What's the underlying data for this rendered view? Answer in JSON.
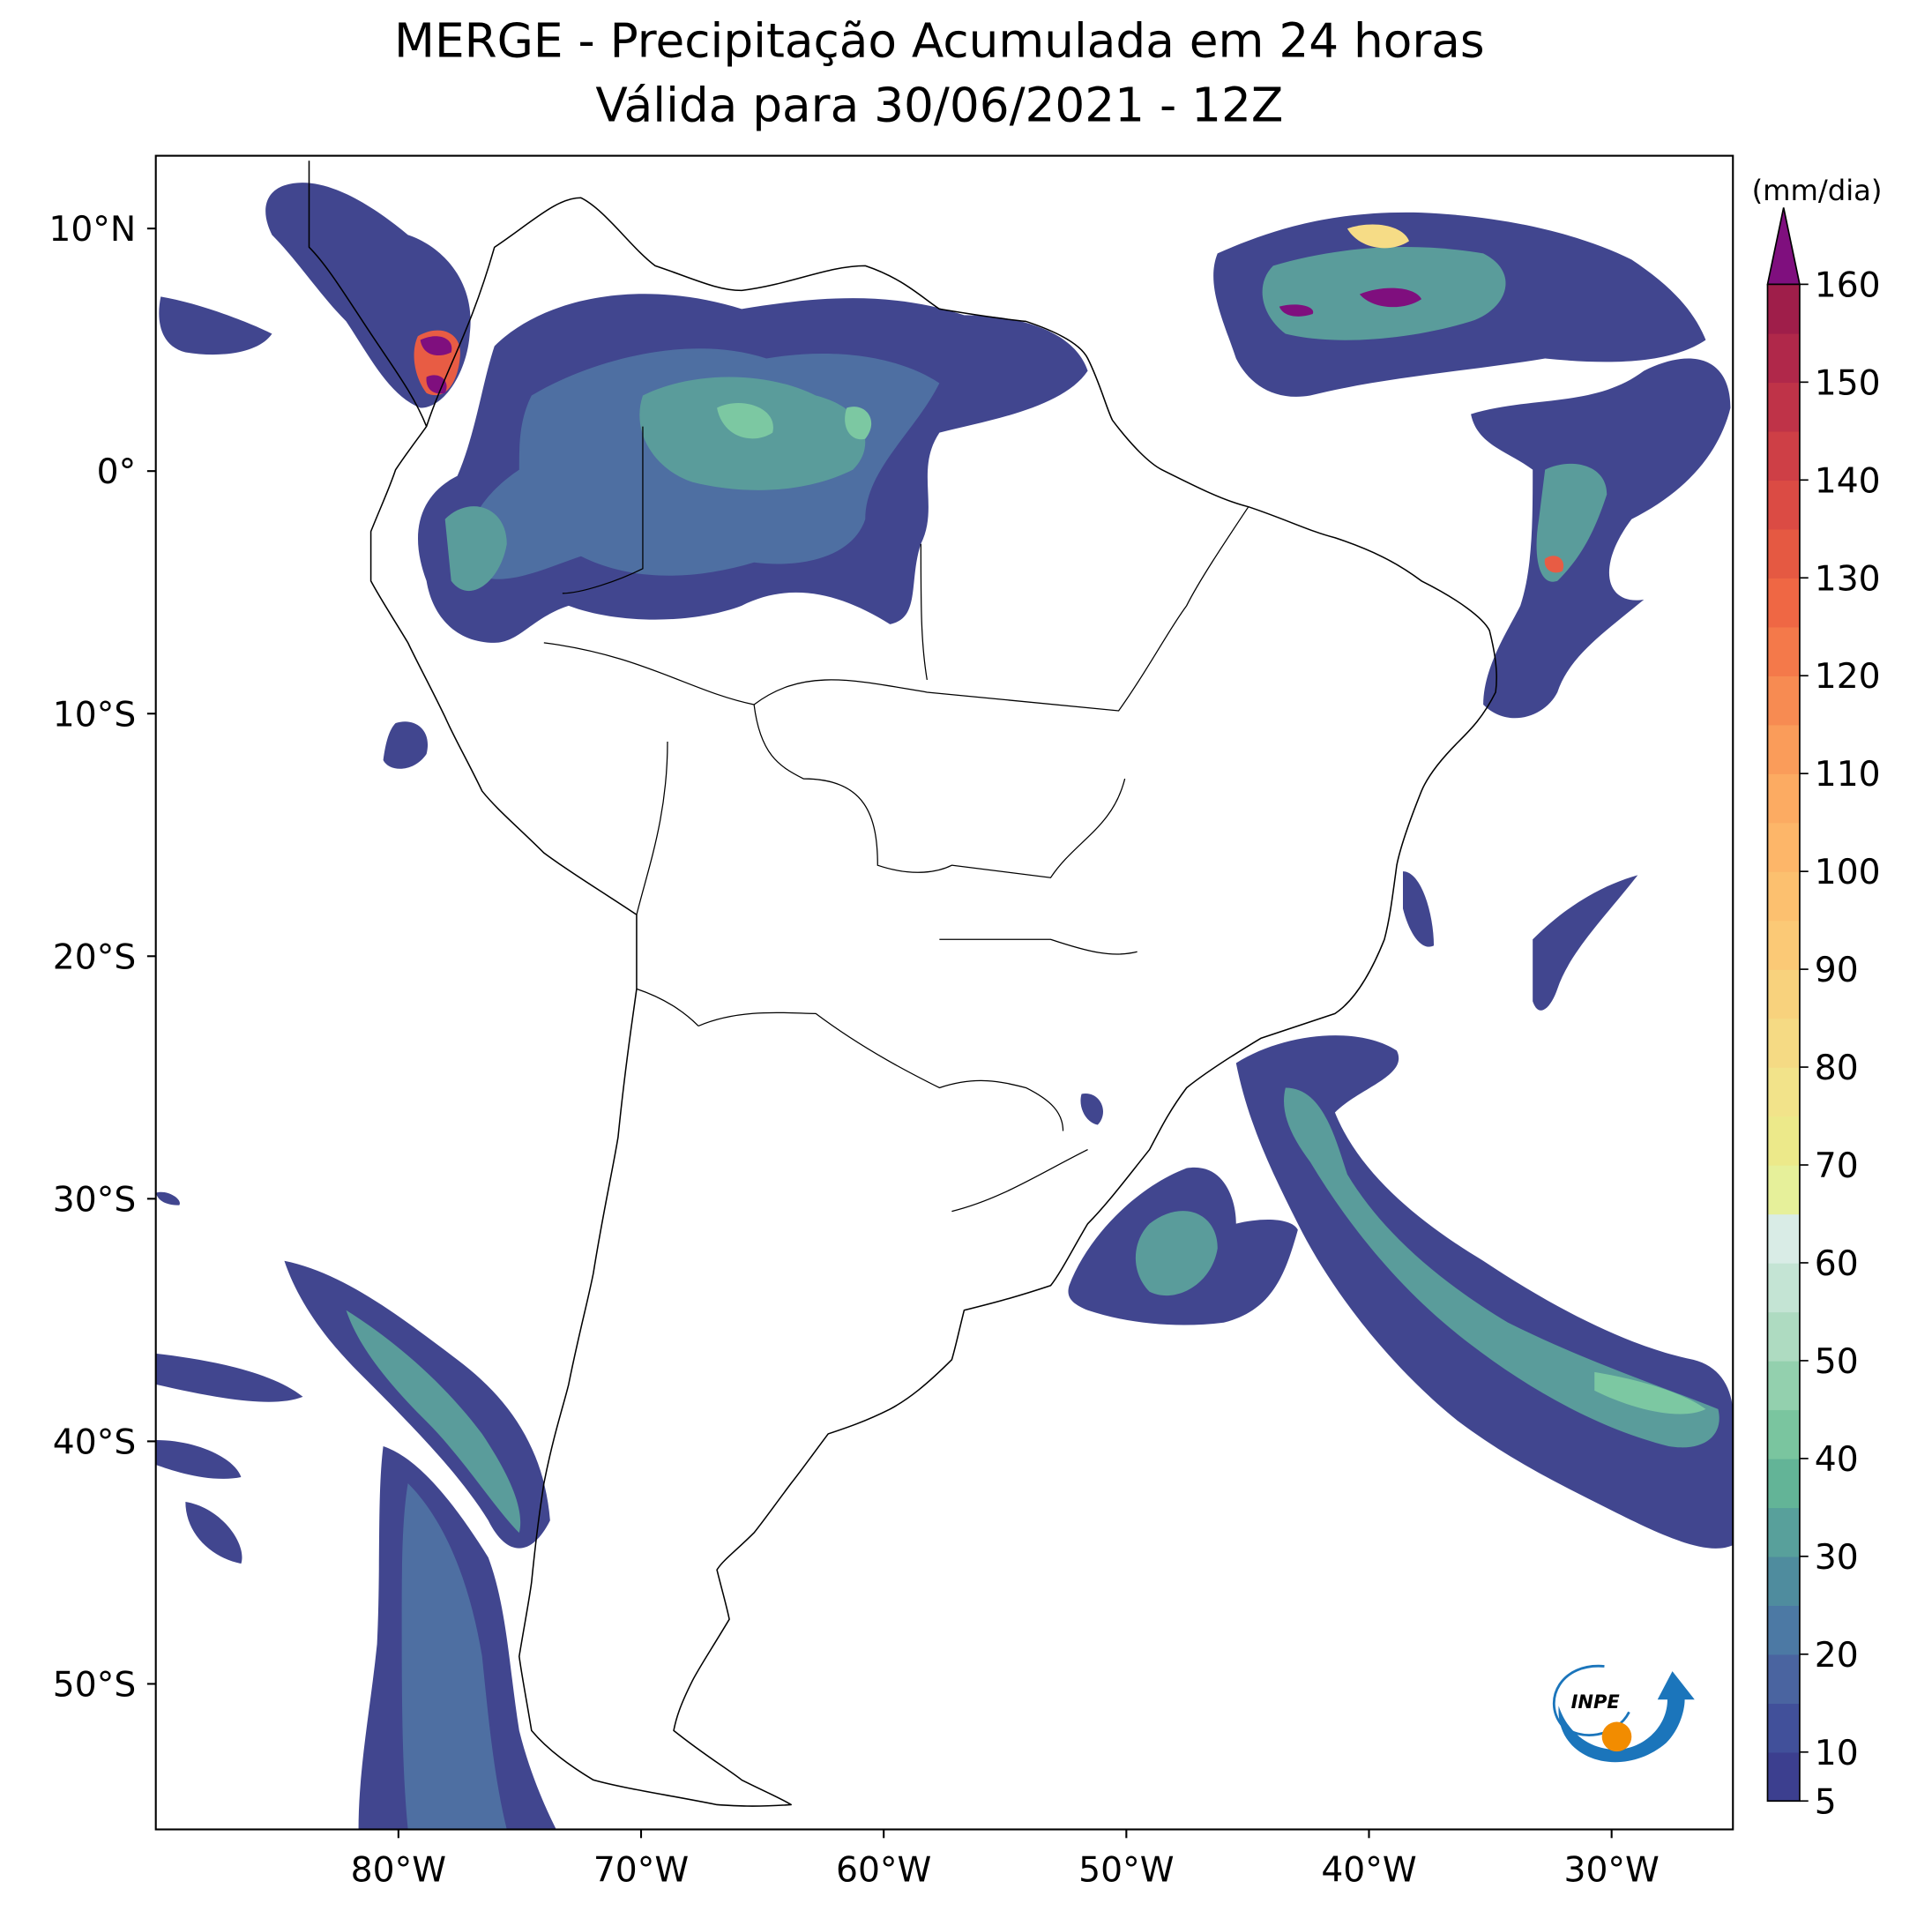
{
  "chart_data": {
    "type": "map",
    "title": "MERGE - Precipitação Acumulada em 24 horas",
    "subtitle": "Válida para 30/06/2021 - 12Z",
    "xlim": [
      -90,
      -25
    ],
    "ylim": [
      -56,
      13
    ],
    "xticks": [
      {
        "value": -80,
        "label": "80°W"
      },
      {
        "value": -70,
        "label": "70°W"
      },
      {
        "value": -60,
        "label": "60°W"
      },
      {
        "value": -50,
        "label": "50°W"
      },
      {
        "value": -40,
        "label": "40°W"
      },
      {
        "value": -30,
        "label": "30°W"
      }
    ],
    "yticks": [
      {
        "value": 10,
        "label": "10°N"
      },
      {
        "value": 0,
        "label": "0°"
      },
      {
        "value": -10,
        "label": "10°S"
      },
      {
        "value": -20,
        "label": "20°S"
      },
      {
        "value": -30,
        "label": "30°S"
      },
      {
        "value": -40,
        "label": "40°S"
      },
      {
        "value": -50,
        "label": "50°S"
      }
    ],
    "colorbar": {
      "label": "(mm/dia)",
      "lim": [
        5,
        160
      ],
      "ticks": [
        5,
        10,
        20,
        30,
        40,
        50,
        60,
        70,
        80,
        90,
        100,
        110,
        120,
        130,
        140,
        150,
        160
      ],
      "colors": [
        "#3c3f8f",
        "#41509a",
        "#4a64a0",
        "#4c79a4",
        "#4f8c9e",
        "#58a09b",
        "#63b497",
        "#7ac59f",
        "#93d0ae",
        "#aedbc1",
        "#c4e4d4",
        "#d9ece6",
        "#e6f09a",
        "#ece98a",
        "#f2e38a",
        "#f5da84",
        "#f8d27d",
        "#fbc976",
        "#fcc06f",
        "#fdb669",
        "#fcab62",
        "#fa9c5a",
        "#f78b52",
        "#f4794a",
        "#ef6744",
        "#e55942",
        "#db4b44",
        "#ce3f46",
        "#bf3348",
        "#b0284a",
        "#9f1e4a"
      ],
      "extend_color": "#7f0f7e"
    }
  },
  "logo": {
    "text": "INPE"
  }
}
